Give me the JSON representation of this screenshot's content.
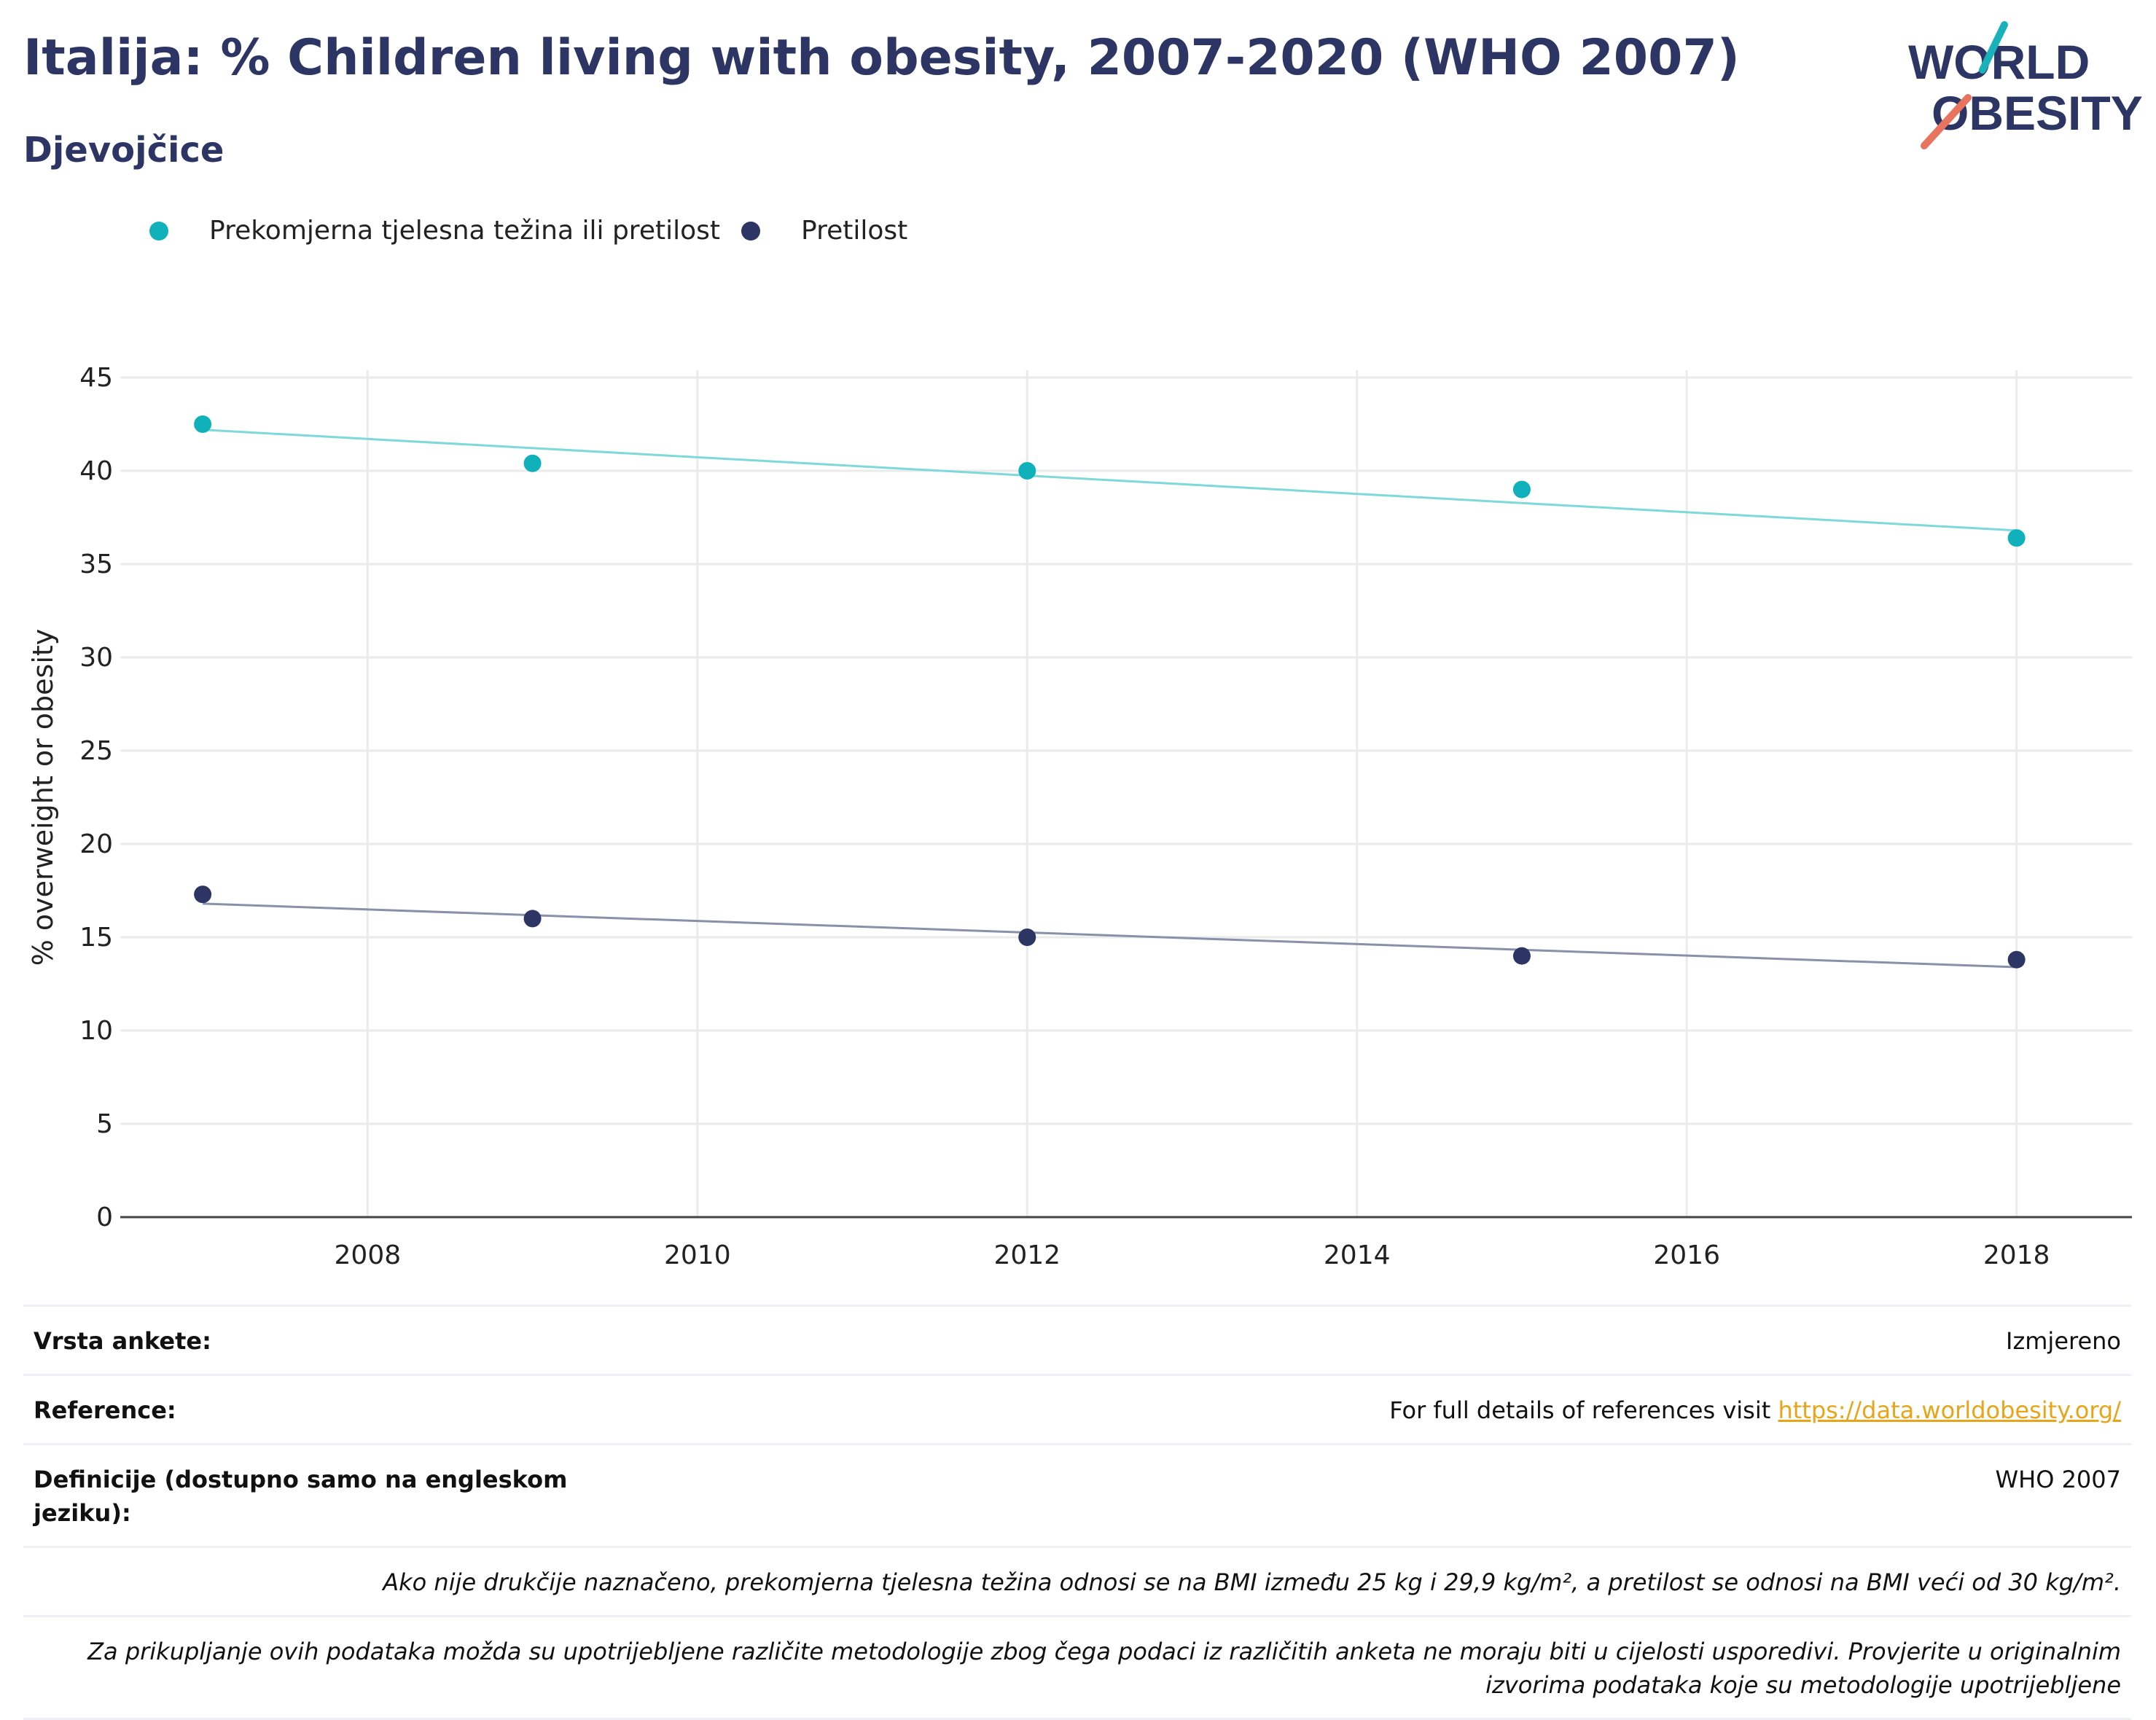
{
  "header": {
    "title": "Italija: % Children living with obesity, 2007-2020 (WHO 2007)",
    "subtitle": "Djevojčice"
  },
  "logo": {
    "line1": "WORLD",
    "line2": "OBESITY",
    "colors": {
      "text": "#2c3563",
      "slash_teal": "#18b2b8",
      "slash_red": "#e8735e"
    }
  },
  "colors": {
    "overweight": "#11b1bb",
    "overweight_trend": "#7fd8dc",
    "obesity": "#2c3563",
    "obesity_trend": "#8890aa",
    "grid": "#ebebeb",
    "axis": "#444444"
  },
  "chart_data": {
    "type": "scatter",
    "title": "Italija: % Children living with obesity, 2007-2020 (WHO 2007)",
    "subtitle": "Djevojčice",
    "xlabel": "",
    "ylabel": "% overweight or obesity",
    "xlim": [
      2006.5,
      2018.7
    ],
    "ylim": [
      0,
      45
    ],
    "xticks": [
      2008,
      2010,
      2012,
      2014,
      2016,
      2018
    ],
    "yticks": [
      0,
      5,
      10,
      15,
      20,
      25,
      30,
      35,
      40,
      45
    ],
    "grid": true,
    "legend_position": "top-left",
    "series": [
      {
        "name": "Prekomjerna tjelesna težina ili pretilost",
        "x": [
          2007,
          2009,
          2012,
          2015,
          2018
        ],
        "y": [
          42.5,
          40.4,
          40.0,
          39.0,
          36.4
        ],
        "trendline": {
          "start": [
            2007,
            42.2
          ],
          "end": [
            2018,
            36.8
          ]
        }
      },
      {
        "name": "Pretilost",
        "x": [
          2007,
          2009,
          2012,
          2015,
          2018
        ],
        "y": [
          17.3,
          16.0,
          15.0,
          14.0,
          13.8
        ],
        "trendline": {
          "start": [
            2007,
            16.8
          ],
          "end": [
            2018,
            13.4
          ]
        }
      }
    ]
  },
  "info": {
    "survey_label": "Vrsta ankete:",
    "survey_value": "Izmjereno",
    "reference_label": "Reference:",
    "reference_text": "For full details of references visit ",
    "reference_link": "https://data.worldobesity.org/",
    "definition_label": "Definicije (dostupno samo na engleskom jeziku):",
    "definition_value": "WHO 2007",
    "note1": "Ako nije drukčije naznačeno, prekomjerna tjelesna težina odnosi se na BMI između 25 kg i 29,9 kg/m², a pretilost se odnosi na BMI veći od 30 kg/m².",
    "note2": "Za prikupljanje ovih podataka možda su upotrijebljene različite metodologije zbog čega podaci iz različitih anketa ne moraju biti u cijelosti usporedivi. Provjerite u originalnim izvorima podataka koje su metodologije upotrijebljene"
  }
}
